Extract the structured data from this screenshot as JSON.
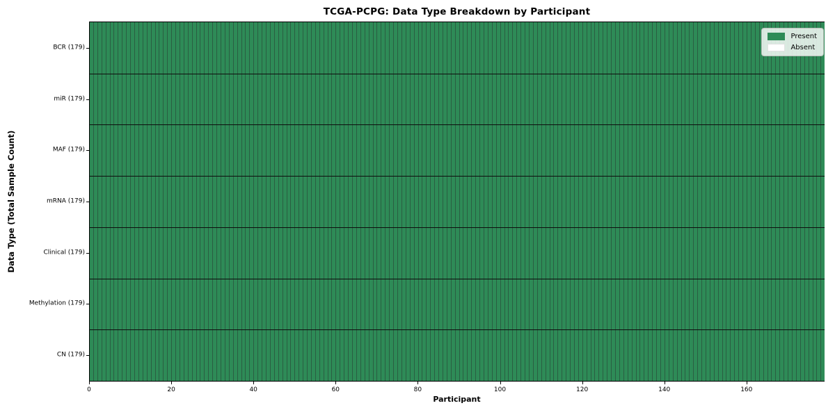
{
  "chart_data": {
    "type": "heatmap",
    "title": "TCGA-PCPG: Data Type Breakdown by Participant",
    "xlabel": "Participant",
    "ylabel": "Data Type (Total Sample Count)",
    "x_ticks": [
      0,
      20,
      40,
      60,
      80,
      100,
      120,
      140,
      160
    ],
    "x_range": [
      0,
      179
    ],
    "n_participants": 179,
    "grid": true,
    "legend_position": "upper right",
    "rows": [
      {
        "label": "BCR (179)",
        "data_type": "BCR",
        "total_samples": 179,
        "present_count": 179,
        "absent_count": 0
      },
      {
        "label": "miR (179)",
        "data_type": "miR",
        "total_samples": 179,
        "present_count": 179,
        "absent_count": 0
      },
      {
        "label": "MAF (179)",
        "data_type": "MAF",
        "total_samples": 179,
        "present_count": 179,
        "absent_count": 0
      },
      {
        "label": "mRNA (179)",
        "data_type": "mRNA",
        "total_samples": 179,
        "present_count": 179,
        "absent_count": 0
      },
      {
        "label": "Clinical (179)",
        "data_type": "Clinical",
        "total_samples": 179,
        "present_count": 179,
        "absent_count": 0
      },
      {
        "label": "Methylation (179)",
        "data_type": "Methylation",
        "total_samples": 179,
        "present_count": 179,
        "absent_count": 0
      },
      {
        "label": "CN (179)",
        "data_type": "CN",
        "total_samples": 179,
        "present_count": 179,
        "absent_count": 0
      }
    ],
    "legend": [
      {
        "label": "Present",
        "color": "#2e8b57"
      },
      {
        "label": "Absent",
        "color": "#ffffff"
      }
    ],
    "colors": {
      "present": "#2e8b57",
      "absent": "#ffffff",
      "cell_grid": "#2a5e42",
      "row_separator": "#0d0d0d",
      "spine": "#000000"
    }
  }
}
